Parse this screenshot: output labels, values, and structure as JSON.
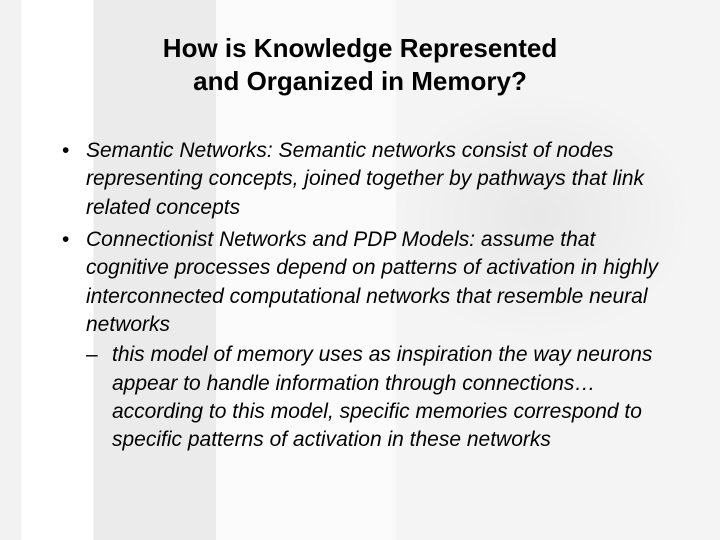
{
  "type": "document-slide",
  "background": {
    "base_color": "#fdfdfd",
    "bands": [
      "#f2f2f2",
      "#ffffff",
      "#ebebeb",
      "#fbfbfb",
      "#f4f4f4"
    ],
    "soft_shadow_color": "rgba(0,0,0,0.05)"
  },
  "text_color": "#000000",
  "font_family": "Arial",
  "title": {
    "line1": "How is Knowledge Represented",
    "line2": "and Organized in Memory?",
    "fontsize": 26,
    "bold": true,
    "align": "center"
  },
  "body": {
    "fontsize": 21,
    "italic": true,
    "bullets": [
      {
        "text": "Semantic Networks: Semantic networks consist of nodes representing concepts, joined together by pathways that link related concepts"
      },
      {
        "text": "Connectionist Networks and PDP Models: assume that cognitive processes depend on patterns of activation in highly interconnected computational networks that resemble neural networks",
        "sub": [
          "this model of memory uses as inspiration the way neurons appear to handle information through connections…according to this model, specific memories correspond to specific patterns of activation in these networks"
        ]
      }
    ]
  }
}
